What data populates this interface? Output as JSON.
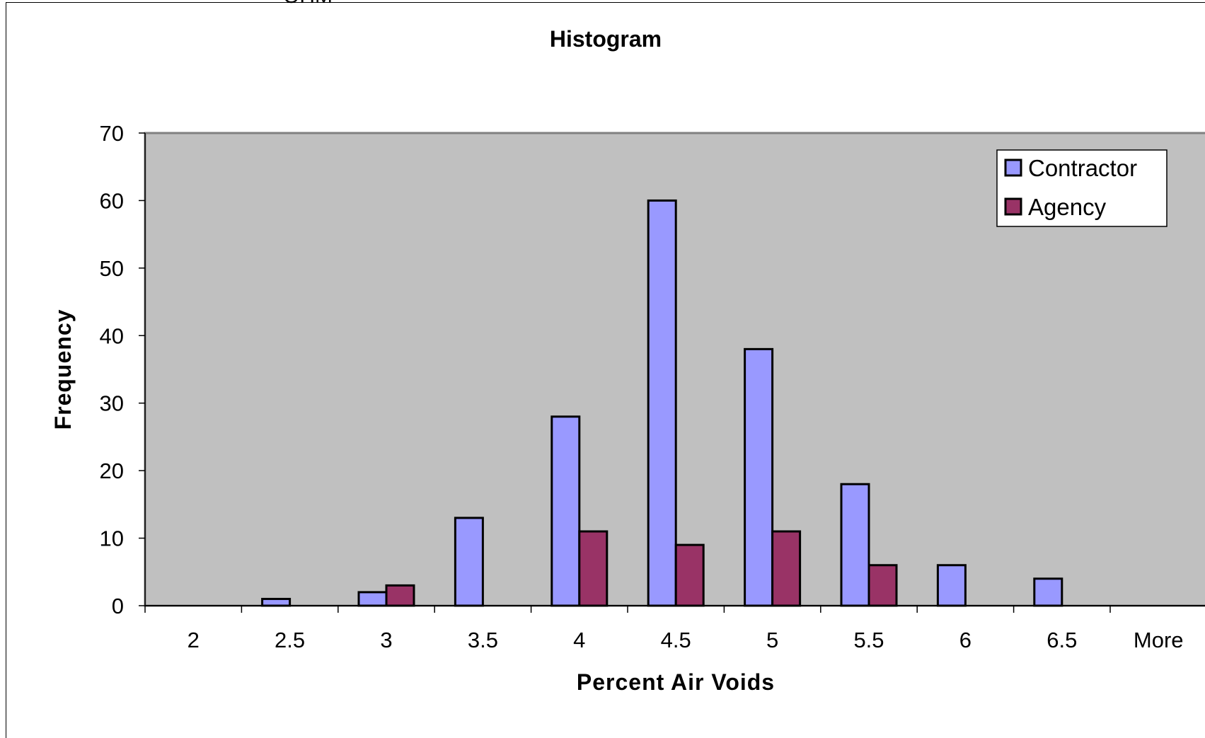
{
  "header_fragment": "OHM",
  "chart_data": {
    "type": "bar",
    "title": "Histogram",
    "xlabel": "Percent Air Voids",
    "ylabel": "Frequency",
    "categories": [
      "2",
      "2.5",
      "3",
      "3.5",
      "4",
      "4.5",
      "5",
      "5.5",
      "6",
      "6.5",
      "More"
    ],
    "series": [
      {
        "name": "Contractor",
        "color": "#9999ff",
        "values": [
          0,
          1,
          2,
          13,
          28,
          60,
          38,
          18,
          6,
          4,
          0
        ]
      },
      {
        "name": "Agency",
        "color": "#993366",
        "values": [
          0,
          0,
          3,
          0,
          11,
          9,
          11,
          6,
          0,
          0,
          0
        ]
      }
    ],
    "ylim": [
      0,
      70
    ],
    "yticks": [
      0,
      10,
      20,
      30,
      40,
      50,
      60,
      70
    ],
    "grid": false,
    "plot_background": "#c0c0c0",
    "legend_position": "top-right"
  }
}
